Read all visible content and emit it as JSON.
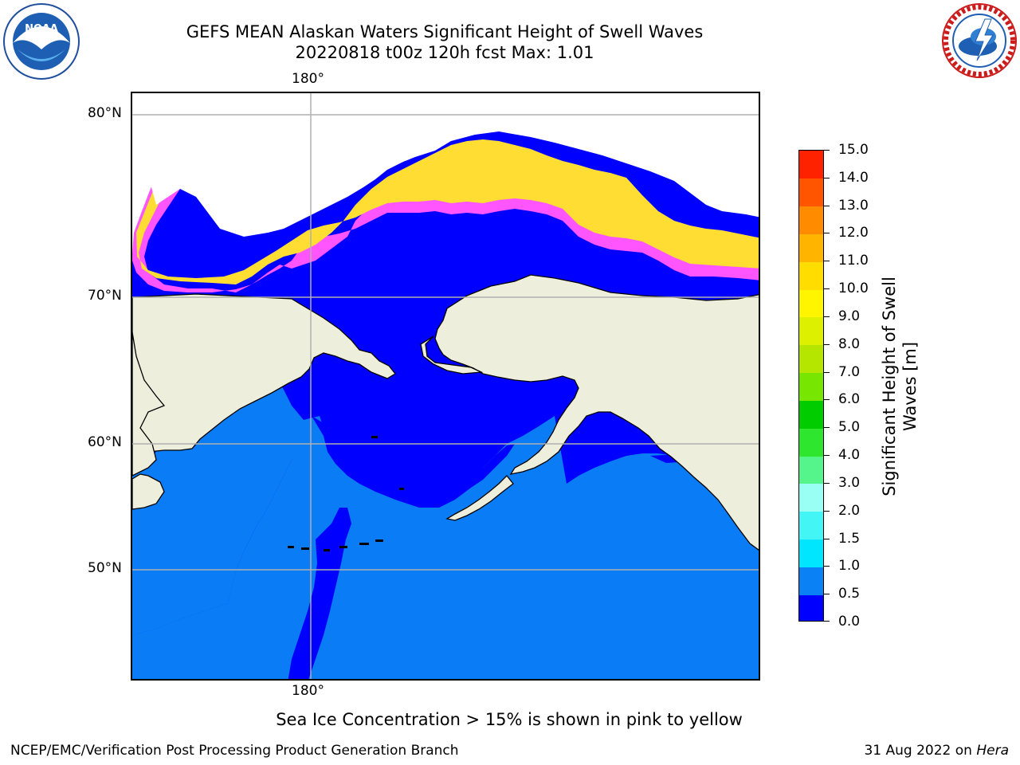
{
  "title_line1": "GEFS MEAN Alaskan Waters Significant Height of Swell Waves",
  "title_line2": "20220818 t00z 120h fcst   Max: 1.01",
  "map": {
    "lon_label_top": "180°",
    "lon_label_bottom": "180°",
    "lat_labels": [
      "80°N",
      "70°N",
      "60°N",
      "50°N"
    ],
    "colors": {
      "ocean_low": "#0000ff",
      "ocean_mid": "#0a7cf5",
      "land": "#eeeedc",
      "grid": "#b0b0b0",
      "ice_pink": "#ff55ff",
      "ice_yellow": "#ffdd33"
    }
  },
  "colorbar": {
    "title_line1": "Significant Height of Swell",
    "title_line2": "Waves [m]",
    "ticks": [
      "0.0",
      "0.5",
      "1.0",
      "1.5",
      "2.0",
      "3.0",
      "4.0",
      "5.0",
      "6.0",
      "7.0",
      "8.0",
      "9.0",
      "10.0",
      "11.0",
      "12.0",
      "13.0",
      "14.0",
      "15.0"
    ],
    "colors": [
      "#0000ff",
      "#0a82f5",
      "#00e6ff",
      "#44f5f5",
      "#99fff5",
      "#55f58c",
      "#2ee62e",
      "#00cc00",
      "#77e600",
      "#b4e600",
      "#dcf000",
      "#fff500",
      "#ffdd00",
      "#ffb400",
      "#ff8c00",
      "#ff5500",
      "#ff2200"
    ]
  },
  "note": "Sea Ice Concentration > 15% is shown in pink to yellow",
  "footer_left": "NCEP/EMC/Verification Post Processing Product Generation Branch",
  "footer_right_date": "31 Aug 2022 on ",
  "footer_right_host": "Hera",
  "logos": {
    "left": "noaa-logo",
    "right": "nws-logo"
  }
}
